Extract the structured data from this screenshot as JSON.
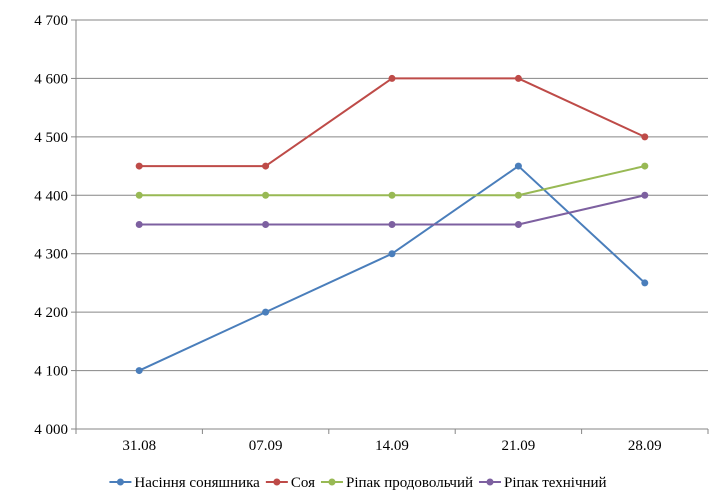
{
  "chart_data": {
    "type": "line",
    "categories": [
      "31.08",
      "07.09",
      "14.09",
      "21.09",
      "28.09"
    ],
    "ylim": [
      4000,
      4700
    ],
    "yticks": [
      4000,
      4100,
      4200,
      4300,
      4400,
      4500,
      4600,
      4700
    ],
    "ytick_labels": [
      "4 000",
      "4 100",
      "4 200",
      "4 300",
      "4 400",
      "4 500",
      "4 600",
      "4 700"
    ],
    "grid": true,
    "legend_position": "bottom",
    "series": [
      {
        "name": "Насіння соняшника",
        "color": "#4a7ebb",
        "values": [
          4100,
          4200,
          4300,
          4450,
          4250
        ]
      },
      {
        "name": "Соя",
        "color": "#be4b48",
        "values": [
          4450,
          4450,
          4600,
          4600,
          4500
        ]
      },
      {
        "name": "Ріпак продовольчий",
        "color": "#98b954",
        "values": [
          4400,
          4400,
          4400,
          4400,
          4450
        ]
      },
      {
        "name": "Ріпак технічний",
        "color": "#7d60a0",
        "values": [
          4350,
          4350,
          4350,
          4350,
          4400
        ]
      }
    ]
  }
}
